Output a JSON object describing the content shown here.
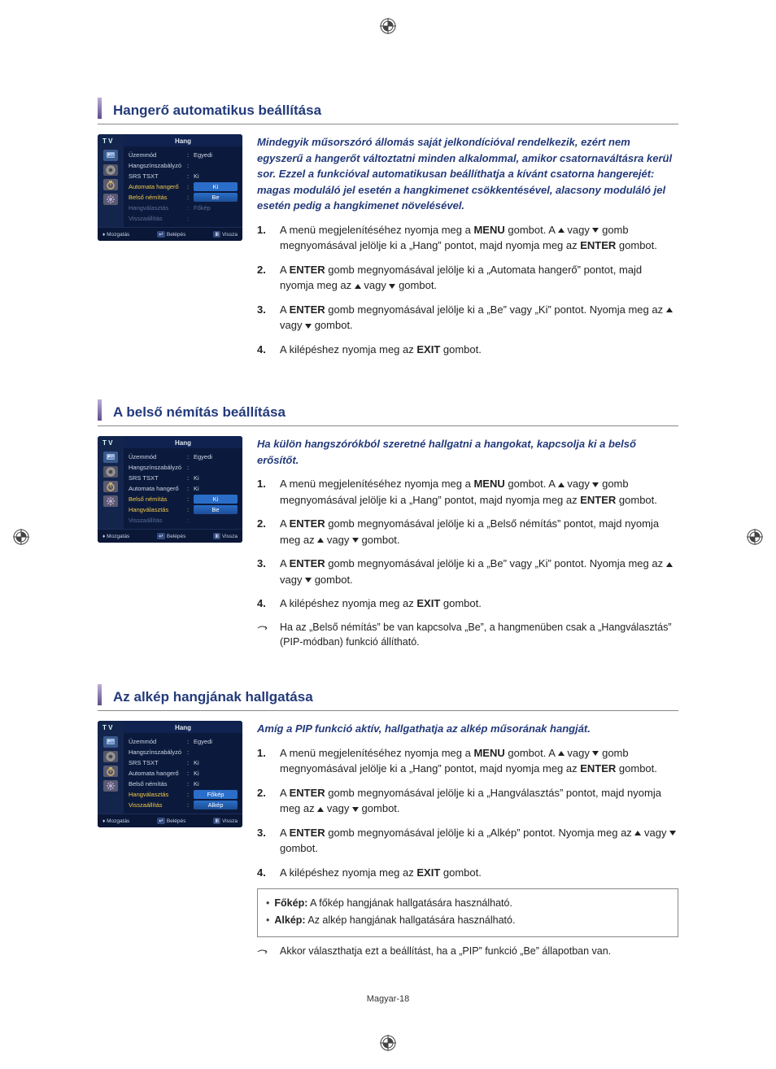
{
  "reg_mark_color": "#444",
  "page_footer": "Magyar-18",
  "sections": [
    {
      "heading": "Hangerő automatikus beállítása",
      "intro": "Mindegyik műsorszóró állomás saját jelkondícióval rendelkezik, ezért nem egyszerű a hangerőt változtatni minden alkalommal, amikor csatornaváltásra kerül sor. Ezzel a funkcióval automatikusan beállíthatja a kívánt csatorna hangerejét: magas moduláló jel esetén a hangkimenet csökkentésével, alacsony moduláló jel esetén pedig a hangkimenet növelésével.",
      "steps": [
        {
          "pre": "A menü megjelenítéséhez nyomja meg a ",
          "b1": "MENU",
          "mid1": " gombot. A ",
          "tri": "updown",
          "mid2": " gomb megnyomásával jelölje ki a „Hang” pontot, majd nyomja meg az ",
          "b2": "ENTER",
          "post": " gombot."
        },
        {
          "pre": "A ",
          "tri": "updown",
          "mid1": " gomb megnyomásával jelölje ki a „Automata hangerő” pontot, majd nyomja meg az ",
          "b1": "ENTER",
          "post": " gombot."
        },
        {
          "pre": "A ",
          "tri": "updown",
          "mid1": " gomb megnyomásával jelölje ki a „Be” vagy „Ki” pontot. Nyomja meg az ",
          "b1": "ENTER",
          "post": " gombot."
        },
        {
          "pre": "A kilépéshez nyomja meg az ",
          "b1": "EXIT",
          "post": " gombot."
        }
      ],
      "menu": {
        "tv_label": "T V",
        "title": "Hang",
        "rows": [
          {
            "label": "Üzemmód",
            "value": "Egyedi",
            "style": "norm"
          },
          {
            "label": "Hangszínszabályzó",
            "value": "",
            "style": "norm"
          },
          {
            "label": "SRS TSXT",
            "value": "Ki",
            "style": "norm"
          },
          {
            "label": "Automata hangerő",
            "value": "Ki",
            "style": "hl"
          },
          {
            "label": "Belső némítás",
            "value": "Be",
            "style": "hl2"
          },
          {
            "label": "Hangválasztás",
            "value": "Főkép",
            "style": "dim"
          },
          {
            "label": "Visszaállítás",
            "value": "",
            "style": "dim"
          }
        ],
        "footer": {
          "move": "Mozgatás",
          "enter": "Belépés",
          "back": "Vissza"
        }
      }
    },
    {
      "heading": "A belső némítás beállítása",
      "intro": "Ha külön hangszórókból szeretné hallgatni a hangokat, kapcsolja ki a belső erősítőt.",
      "steps": [
        {
          "pre": "A menü megjelenítéséhez nyomja meg a ",
          "b1": "MENU",
          "mid1": " gombot. A ",
          "tri": "updown",
          "mid2": " gomb megnyomásával jelölje ki a „Hang” pontot, majd nyomja meg az ",
          "b2": "ENTER",
          "post": " gombot."
        },
        {
          "pre": "A ",
          "tri": "updown",
          "mid1": " gomb megnyomásával jelölje ki a „Belső némítás” pontot, majd nyomja meg az ",
          "b1": "ENTER",
          "post": " gombot."
        },
        {
          "pre": "A ",
          "tri": "updown",
          "mid1": " gomb megnyomásával jelölje ki a „Be” vagy „Ki” pontot. Nyomja meg az ",
          "b1": "ENTER",
          "post": " gombot."
        },
        {
          "pre": "A kilépéshez nyomja meg az ",
          "b1": "EXIT",
          "post": " gombot."
        }
      ],
      "note": "Ha az „Belső némítás” be van kapcsolva „Be”, a hangmenüben csak a „Hangválasztás” (PIP-módban) funkció állítható.",
      "menu": {
        "tv_label": "T V",
        "title": "Hang",
        "rows": [
          {
            "label": "Üzemmód",
            "value": "Egyedi",
            "style": "norm"
          },
          {
            "label": "Hangszínszabályzó",
            "value": "",
            "style": "norm"
          },
          {
            "label": "SRS TSXT",
            "value": "Ki",
            "style": "norm"
          },
          {
            "label": "Automata hangerő",
            "value": "Ki",
            "style": "norm"
          },
          {
            "label": "Belső némítás",
            "value": "Ki",
            "style": "hl"
          },
          {
            "label": "Hangválasztás",
            "value": "Be",
            "style": "hl2"
          },
          {
            "label": "Visszaállítás",
            "value": "",
            "style": "dim"
          }
        ],
        "footer": {
          "move": "Mozgatás",
          "enter": "Belépés",
          "back": "Vissza"
        }
      }
    },
    {
      "heading": "Az alkép hangjának hallgatása",
      "intro": "Amíg a PIP funkció aktív, hallgathatja az alkép műsorának hangját.",
      "steps": [
        {
          "pre": "A menü megjelenítéséhez nyomja meg a ",
          "b1": "MENU",
          "mid1": " gombot. A ",
          "tri": "updown",
          "mid2": " gomb megnyomásával jelölje ki a „Hang” pontot, majd nyomja meg az ",
          "b2": "ENTER",
          "post": " gombot."
        },
        {
          "pre": "A ",
          "tri": "updown",
          "mid1": " gomb megnyomásával jelölje ki a „Hangválasztás” pontot, majd nyomja meg az ",
          "b1": "ENTER",
          "post": " gombot."
        },
        {
          "pre": "A ",
          "tri": "updown",
          "mid1": " gomb megnyomásával jelölje ki a „Alkép” pontot. Nyomja meg az ",
          "b1": "ENTER",
          "post": " gombot."
        },
        {
          "pre": "A kilépéshez nyomja meg az ",
          "b1": "EXIT",
          "post": " gombot."
        }
      ],
      "infobox": [
        {
          "b": "Főkép:",
          "t": " A főkép hangjának hallgatására használható."
        },
        {
          "b": "Alkép:",
          "t": " Az alkép hangjának hallgatására használható."
        }
      ],
      "note": "Akkor választhatja ezt a beállítást, ha a „PIP” funkció „Be” állapotban van.",
      "menu": {
        "tv_label": "T V",
        "title": "Hang",
        "rows": [
          {
            "label": "Üzemmód",
            "value": "Egyedi",
            "style": "norm"
          },
          {
            "label": "Hangszínszabályzó",
            "value": "",
            "style": "norm"
          },
          {
            "label": "SRS TSXT",
            "value": "Ki",
            "style": "norm"
          },
          {
            "label": "Automata hangerő",
            "value": "Ki",
            "style": "norm"
          },
          {
            "label": "Belső némítás",
            "value": "Ki",
            "style": "norm"
          },
          {
            "label": "Hangválasztás",
            "value": "Főkép",
            "style": "hl"
          },
          {
            "label": "Visszaállítás",
            "value": "Alkép",
            "style": "hl2dim"
          }
        ],
        "footer": {
          "move": "Mozgatás",
          "enter": "Belépés",
          "back": "Vissza"
        }
      }
    }
  ]
}
